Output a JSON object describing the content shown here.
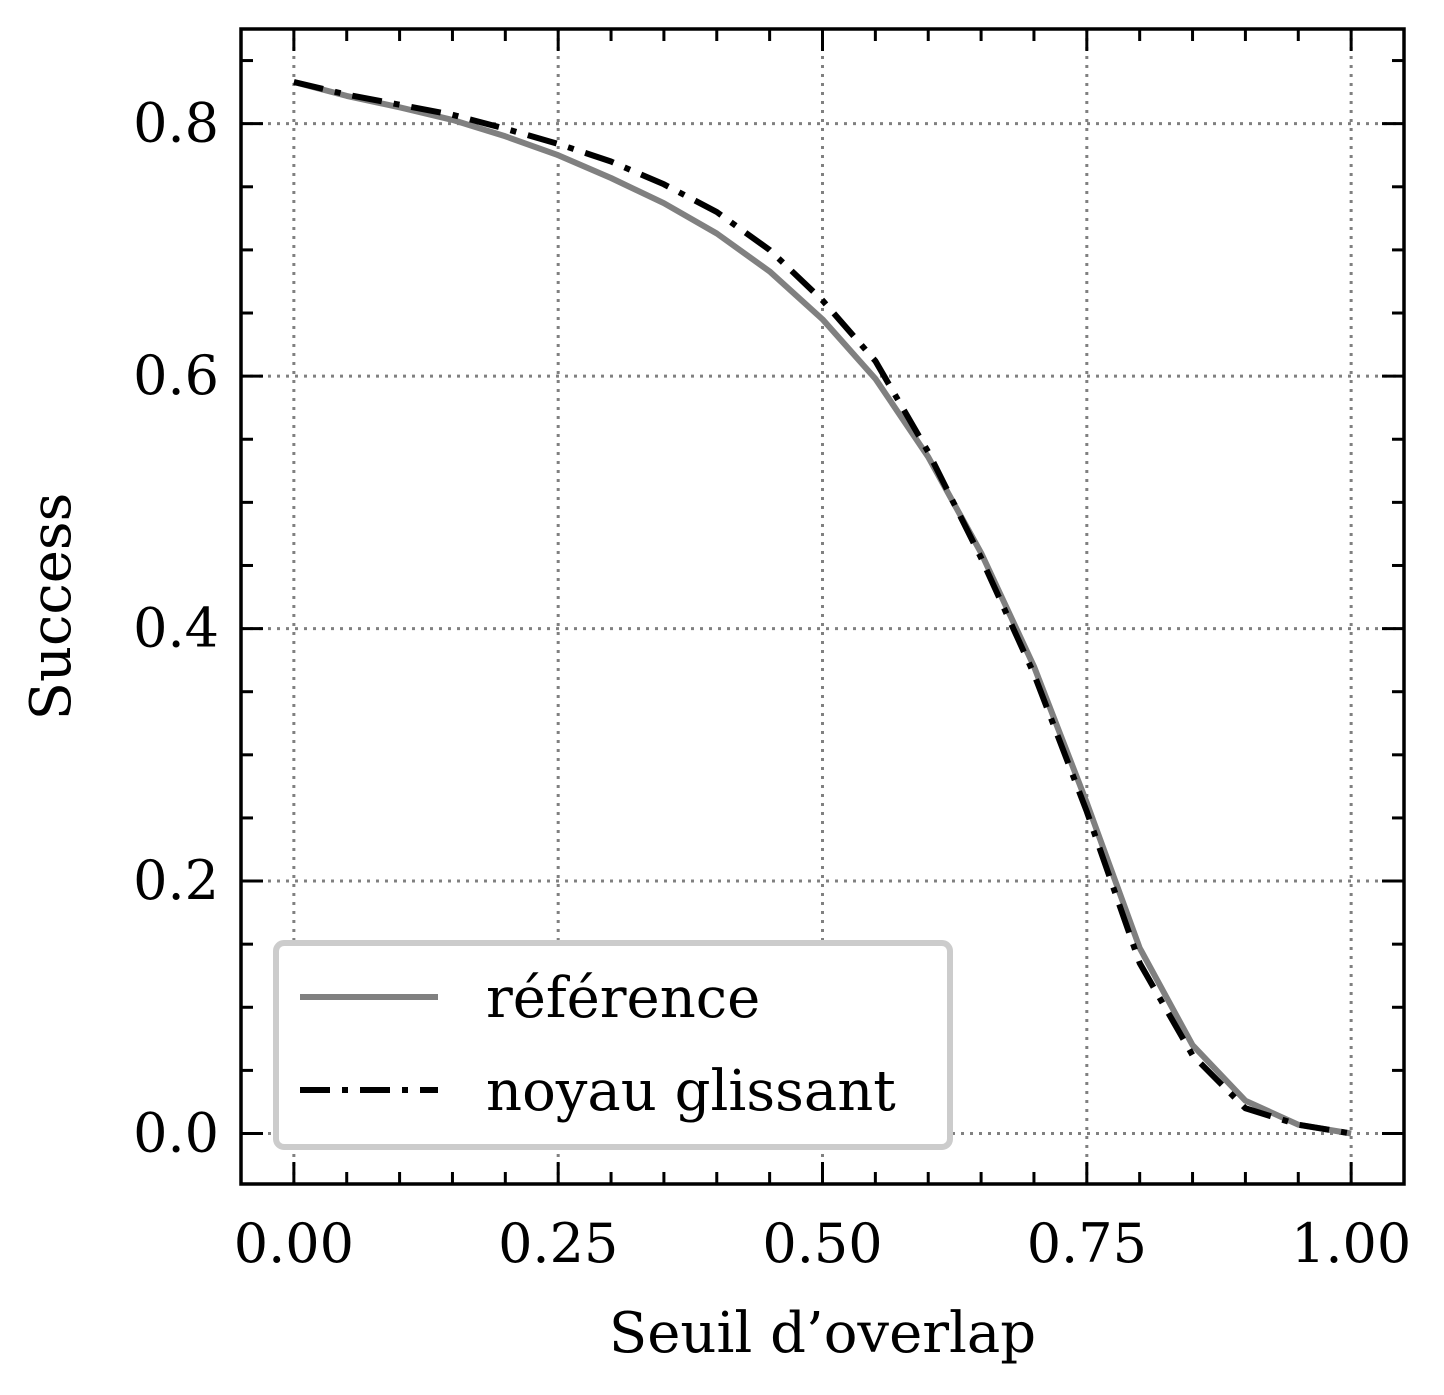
{
  "chart_data": {
    "type": "line",
    "title": "",
    "xlabel": "Seuil d’overlap",
    "ylabel": "Success",
    "xlim": [
      -0.1,
      2.1
    ],
    "ylim": [
      -0.04,
      0.875
    ],
    "xticks": [
      0.0,
      0.5,
      1.0,
      1.5,
      2.0
    ],
    "xtick_labels": [
      "0.00",
      "0.25",
      "0.50",
      "0.75",
      "1.00"
    ],
    "yticks": [
      0.0,
      0.2,
      0.4,
      0.6,
      0.8
    ],
    "ytick_labels": [
      "0.0",
      "0.2",
      "0.4",
      "0.6",
      "0.8"
    ],
    "grid": true,
    "legend_position": "lower-left",
    "x": [
      0.0,
      0.1,
      0.2,
      0.3,
      0.4,
      0.5,
      0.6,
      0.7,
      0.8,
      0.9,
      1.0,
      1.1,
      1.2,
      1.3,
      1.4,
      1.5,
      1.6,
      1.7,
      1.8,
      1.9,
      2.0
    ],
    "series": [
      {
        "name": "référence",
        "color": "#808080",
        "style": "solid",
        "values": [
          0.833,
          0.822,
          0.813,
          0.803,
          0.79,
          0.775,
          0.757,
          0.737,
          0.713,
          0.683,
          0.645,
          0.598,
          0.536,
          0.46,
          0.37,
          0.262,
          0.147,
          0.07,
          0.026,
          0.007,
          0.0
        ]
      },
      {
        "name": "noyau glissant",
        "color": "#000000",
        "style": "dashdot",
        "values": [
          0.833,
          0.823,
          0.815,
          0.807,
          0.796,
          0.784,
          0.77,
          0.752,
          0.73,
          0.7,
          0.66,
          0.612,
          0.54,
          0.456,
          0.364,
          0.255,
          0.135,
          0.062,
          0.02,
          0.007,
          0.0
        ]
      }
    ]
  }
}
